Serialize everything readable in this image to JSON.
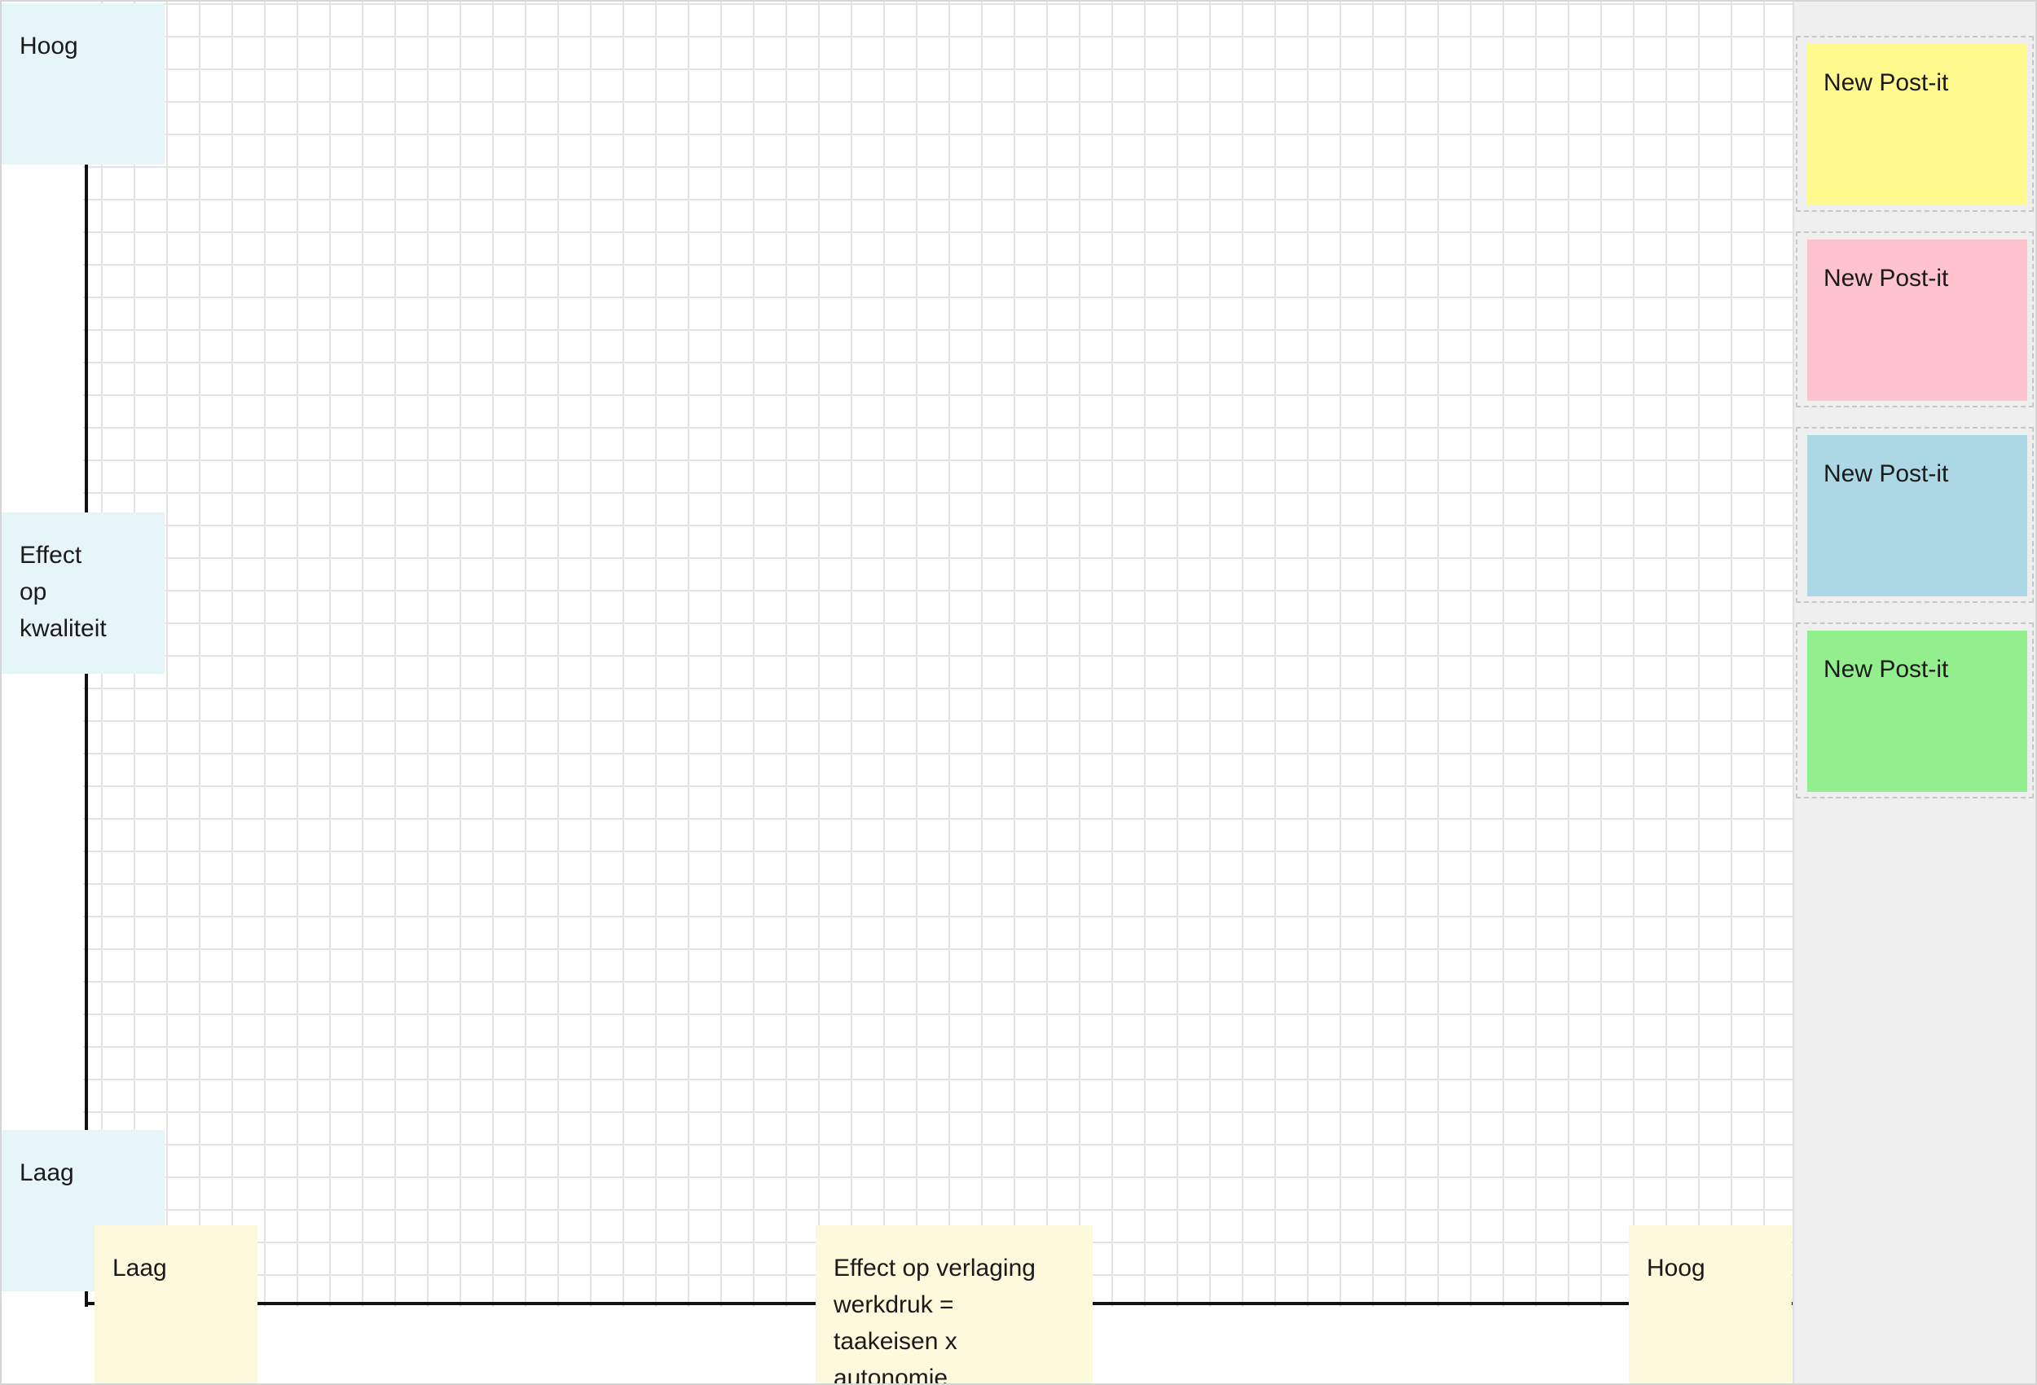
{
  "board": {
    "y_axis": {
      "high_label": "Hoog",
      "title": "Effect\nop\nkwaliteit",
      "low_label": "Laag"
    },
    "x_axis": {
      "low_label": "Laag",
      "title": "Effect op verlaging\nwerkdruk =\ntaakeisen x autonomie",
      "high_label": "Hoog"
    },
    "colors": {
      "y_label_bg": "#e6f5f8",
      "x_label_bg": "#fdf9dc",
      "grid": "#e3e3e3",
      "axis": "#111111"
    }
  },
  "palette": {
    "postits": [
      {
        "label": "New Post-it",
        "color": "#fff98e",
        "name": "yellow"
      },
      {
        "label": "New Post-it",
        "color": "#ffc2cf",
        "name": "pink"
      },
      {
        "label": "New Post-it",
        "color": "#acd8e6",
        "name": "blue"
      },
      {
        "label": "New Post-it",
        "color": "#93ee8e",
        "name": "green"
      }
    ]
  }
}
